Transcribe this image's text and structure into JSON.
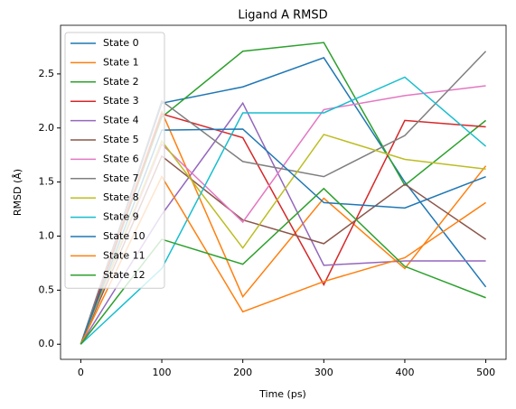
{
  "chart_data": {
    "type": "line",
    "title": "Ligand A RMSD",
    "x_label": "Time (ps)",
    "y_label": "RMSD (Å)",
    "x": [
      0,
      100,
      200,
      300,
      400,
      500
    ],
    "xlim": [
      -25,
      525
    ],
    "ylim": [
      -0.14,
      2.95
    ],
    "xticks": [
      0,
      100,
      200,
      300,
      400,
      500
    ],
    "yticks": [
      {
        "value": 0,
        "label": "0.0"
      },
      {
        "value": 0.5,
        "label": "0.5"
      },
      {
        "value": 1,
        "label": "1.0"
      },
      {
        "value": 1.5,
        "label": "1.5"
      },
      {
        "value": 2,
        "label": "2.0"
      },
      {
        "value": 2.5,
        "label": "2.5"
      }
    ],
    "legend": "upper left",
    "series": [
      {
        "name": "State 0",
        "color": "#1f77b4",
        "values": [
          0,
          2.23,
          2.38,
          2.65,
          1.5,
          0.53
        ]
      },
      {
        "name": "State 1",
        "color": "#ff7f0e",
        "values": [
          0,
          2.15,
          0.44,
          1.35,
          0.7,
          1.65
        ]
      },
      {
        "name": "State 2",
        "color": "#2ca02c",
        "values": [
          0,
          2.1,
          2.71,
          2.79,
          1.47,
          2.07
        ]
      },
      {
        "name": "State 3",
        "color": "#d62728",
        "values": [
          0,
          2.13,
          1.91,
          0.55,
          2.07,
          2.01
        ]
      },
      {
        "name": "State 4",
        "color": "#9467bd",
        "values": [
          0,
          1.2,
          2.23,
          0.73,
          0.77,
          0.77
        ]
      },
      {
        "name": "State 5",
        "color": "#8c564b",
        "values": [
          0,
          1.74,
          1.15,
          0.93,
          1.48,
          0.97
        ]
      },
      {
        "name": "State 6",
        "color": "#e377c2",
        "values": [
          0,
          1.85,
          1.13,
          2.17,
          2.3,
          2.39
        ]
      },
      {
        "name": "State 7",
        "color": "#7f7f7f",
        "values": [
          0,
          2.25,
          1.69,
          1.55,
          1.93,
          2.71
        ]
      },
      {
        "name": "State 8",
        "color": "#bcbd22",
        "values": [
          0,
          1.88,
          0.89,
          1.94,
          1.71,
          1.62
        ]
      },
      {
        "name": "State 9",
        "color": "#17becf",
        "values": [
          0,
          0.7,
          2.14,
          2.14,
          2.47,
          1.83
        ]
      },
      {
        "name": "State 10",
        "color": "#1f77b4",
        "values": [
          0,
          1.98,
          1.99,
          1.31,
          1.26,
          1.55
        ]
      },
      {
        "name": "State 11",
        "color": "#ff7f0e",
        "values": [
          0,
          1.55,
          0.3,
          0.58,
          0.8,
          1.31
        ]
      },
      {
        "name": "State 12",
        "color": "#2ca02c",
        "values": [
          0,
          0.97,
          0.74,
          1.44,
          0.72,
          0.43
        ]
      }
    ]
  }
}
